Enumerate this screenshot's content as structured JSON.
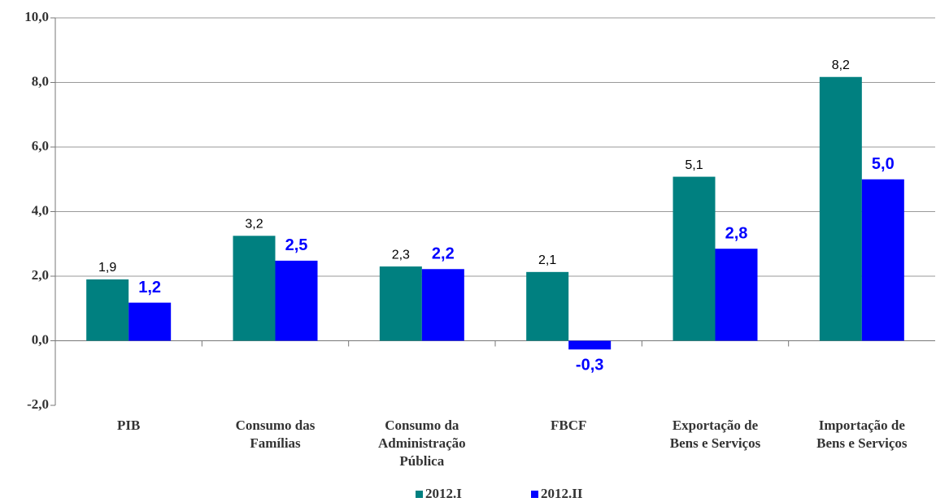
{
  "chart_data": {
    "type": "bar",
    "categories": [
      [
        "PIB"
      ],
      [
        "Consumo das",
        "Famílias"
      ],
      [
        "Consumo da",
        "Administração",
        "Pública"
      ],
      [
        "FBCF"
      ],
      [
        "Exportação de",
        "Bens e Serviços"
      ],
      [
        "Importação de",
        "Bens e Serviços"
      ]
    ],
    "series": [
      {
        "name": "2012.I",
        "color": "#008080",
        "values": [
          1.9,
          3.25,
          2.3,
          2.13,
          5.08,
          8.17
        ],
        "value_labels": [
          "1,9",
          "3,2",
          "2,3",
          "2,1",
          "5,1",
          "8,2"
        ]
      },
      {
        "name": "2012.II",
        "color": "#0000ff",
        "values": [
          1.18,
          2.48,
          2.22,
          -0.27,
          2.85,
          5.0
        ],
        "value_labels": [
          "1,2",
          "2,5",
          "2,2",
          "-0,3",
          "2,8",
          "5,0"
        ]
      }
    ],
    "ylim": [
      -2,
      10
    ],
    "yticks": [
      {
        "value": -2,
        "label": "-2,0"
      },
      {
        "value": 0,
        "label": "0,0"
      },
      {
        "value": 2,
        "label": "2,0"
      },
      {
        "value": 4,
        "label": "4,0"
      },
      {
        "value": 6,
        "label": "6,0"
      },
      {
        "value": 8,
        "label": "8,0"
      },
      {
        "value": 10,
        "label": "10,0"
      }
    ],
    "grid": true
  }
}
